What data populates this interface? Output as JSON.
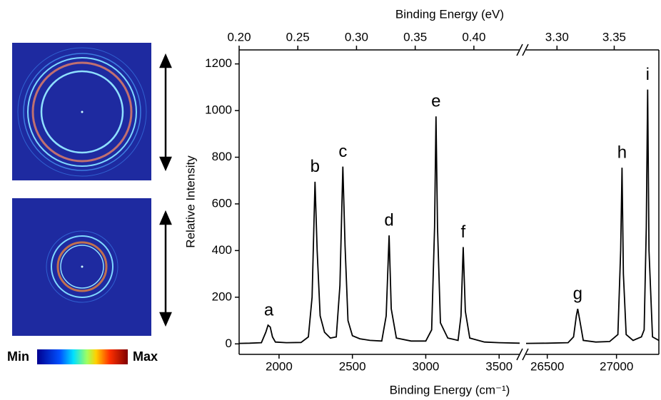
{
  "images": {
    "colorbar_min": "Min",
    "colorbar_max": "Max"
  },
  "chart_data": [
    {
      "type": "line",
      "x_label": "Binding Energy (cm⁻¹)",
      "x2_label": "Binding Energy (eV)",
      "y_label": "Relative Intensity",
      "color": "#000000",
      "x": [
        1728,
        1800,
        1880,
        1910,
        1925,
        1940,
        1955,
        1975,
        2050,
        2150,
        2200,
        2225,
        2245,
        2260,
        2280,
        2310,
        2350,
        2390,
        2415,
        2435,
        2450,
        2470,
        2500,
        2550,
        2620,
        2700,
        2730,
        2750,
        2765,
        2800,
        2900,
        3000,
        3040,
        3060,
        3070,
        3080,
        3100,
        3150,
        3220,
        3240,
        3255,
        3270,
        3300,
        3400,
        3500,
        3640
      ],
      "values": [
        2,
        3,
        5,
        50,
        80,
        72,
        30,
        8,
        5,
        6,
        30,
        200,
        695,
        400,
        120,
        50,
        25,
        30,
        250,
        760,
        420,
        100,
        35,
        22,
        15,
        12,
        120,
        465,
        150,
        25,
        12,
        12,
        60,
        500,
        975,
        500,
        90,
        25,
        15,
        120,
        415,
        140,
        25,
        8,
        5,
        3
      ],
      "xlim": [
        1728,
        3640
      ],
      "xticks": [
        2000,
        2500,
        3000,
        3500
      ],
      "x2lim": [
        0.2,
        0.439
      ],
      "x2ticks": [
        {
          "value": 0.2,
          "label": "0.20"
        },
        0.25,
        {
          "value": 0.3,
          "label": "0.30"
        },
        0.35,
        {
          "value": 0.4,
          "label": "0.40"
        }
      ],
      "ylim": [
        -45,
        1260
      ],
      "yticks": [
        0,
        200,
        400,
        600,
        800,
        1000,
        1200
      ],
      "annotations": [
        {
          "text": "a",
          "x": 1930,
          "y": 80
        },
        {
          "text": "b",
          "x": 2245,
          "y": 695
        },
        {
          "text": "c",
          "x": 2435,
          "y": 760
        },
        {
          "text": "d",
          "x": 2750,
          "y": 465
        },
        {
          "text": "e",
          "x": 3070,
          "y": 975
        },
        {
          "text": "f",
          "x": 3255,
          "y": 415
        }
      ]
    },
    {
      "type": "line",
      "color": "#000000",
      "x": [
        26347,
        26500,
        26650,
        26690,
        26710,
        26720,
        26735,
        26760,
        26850,
        26950,
        27010,
        27030,
        27040,
        27050,
        27070,
        27120,
        27180,
        27200,
        27215,
        27225,
        27235,
        27260,
        27306
      ],
      "values": [
        2,
        3,
        5,
        30,
        120,
        150,
        100,
        15,
        8,
        10,
        40,
        400,
        755,
        300,
        40,
        15,
        30,
        60,
        500,
        1090,
        400,
        30,
        15
      ],
      "xlim": [
        26347,
        27306
      ],
      "xticks": [
        26500,
        27000
      ],
      "x2lim": [
        3.273,
        3.389
      ],
      "x2ticks": [
        {
          "value": 3.3,
          "label": "3.30"
        },
        3.35
      ],
      "ylim": [
        -45,
        1260
      ],
      "annotations": [
        {
          "text": "g",
          "x": 26720,
          "y": 150
        },
        {
          "text": "h",
          "x": 27040,
          "y": 755
        },
        {
          "text": "i",
          "x": 27225,
          "y": 1090,
          "color": "#e02020"
        }
      ]
    }
  ]
}
